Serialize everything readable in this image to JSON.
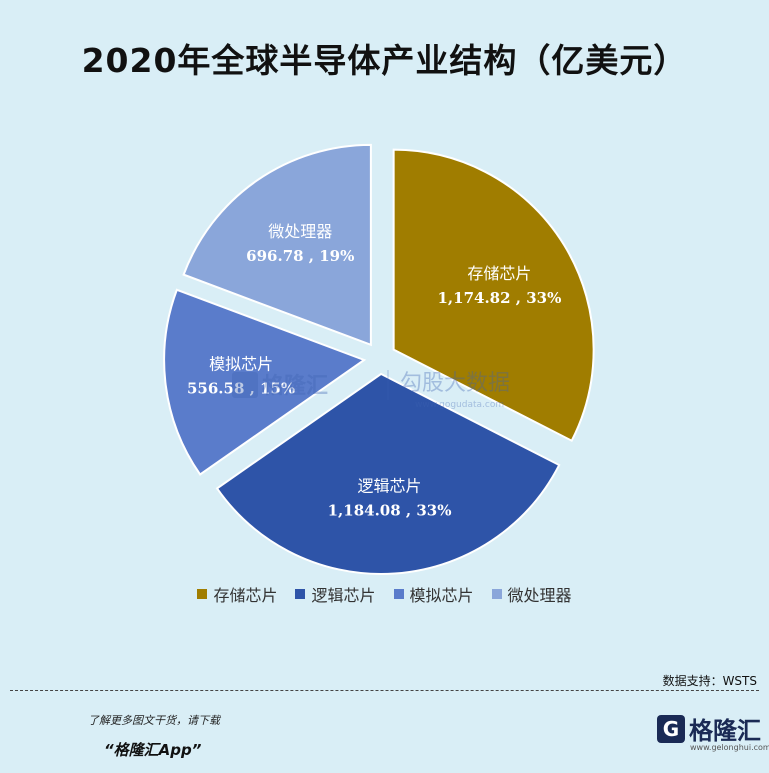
{
  "title": "2020年全球半导体产业结构（亿美元）",
  "chart_data": {
    "type": "pie",
    "title": "2020年全球半导体产业结构（亿美元）",
    "slices": [
      {
        "name": "存储芯片",
        "value": 1174.82,
        "value_label": "1,174.82",
        "percent_label": "33%",
        "color": "#a07d00"
      },
      {
        "name": "逻辑芯片",
        "value": 1184.08,
        "value_label": "1,184.08",
        "percent_label": "33%",
        "color": "#2e54a8"
      },
      {
        "name": "模拟芯片",
        "value": 556.58,
        "value_label": "556.58",
        "percent_label": "15%",
        "color": "#5a7ccb"
      },
      {
        "name": "微处理器",
        "value": 696.78,
        "value_label": "696.78",
        "percent_label": "19%",
        "color": "#8aa6da"
      }
    ],
    "exploded": true,
    "legend_position": "bottom"
  },
  "watermark": {
    "brand": "格隆汇",
    "text": "勾股大数据",
    "url": "www.gogudata.com"
  },
  "source": "数据支持：WSTS",
  "footer": {
    "promo_line1": "了解更多图文干货，请下载",
    "promo_line2": "“格隆汇App”",
    "logo_mark": "G",
    "logo_text": "格隆汇",
    "logo_url": "www.gelonghui.com"
  }
}
